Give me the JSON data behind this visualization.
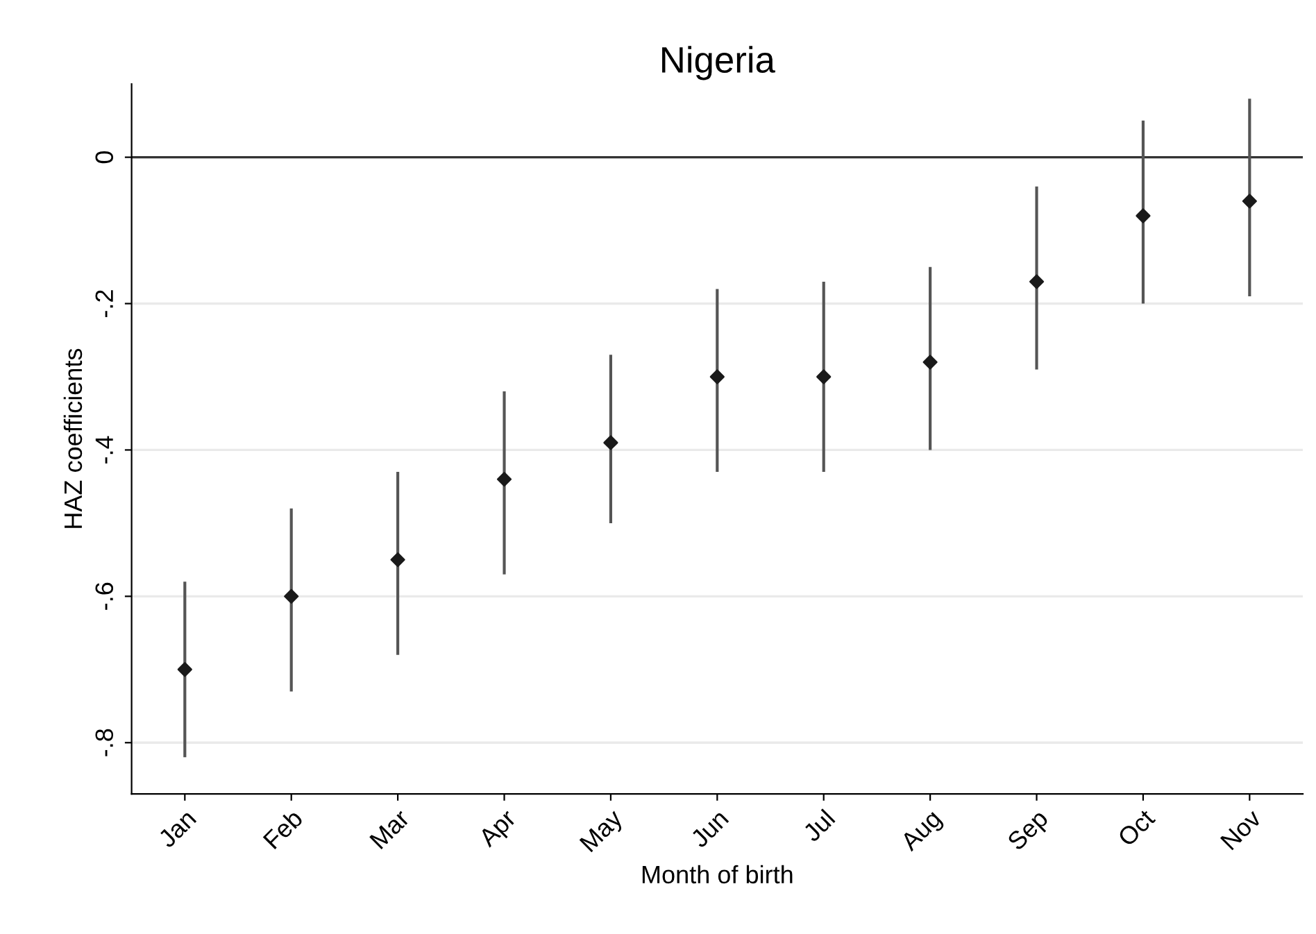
{
  "chart_data": {
    "type": "scatter",
    "title": "Nigeria",
    "xlabel": "Month of birth",
    "ylabel": "HAZ coefficients",
    "categories": [
      "Jan",
      "Feb",
      "Mar",
      "Apr",
      "May",
      "Jun",
      "Jul",
      "Aug",
      "Sep",
      "Oct",
      "Nov"
    ],
    "values": [
      -0.7,
      -0.6,
      -0.55,
      -0.44,
      -0.39,
      -0.3,
      -0.3,
      -0.28,
      -0.17,
      -0.08,
      -0.06
    ],
    "errors": [
      [
        -0.82,
        -0.58
      ],
      [
        -0.73,
        -0.48
      ],
      [
        -0.68,
        -0.43
      ],
      [
        -0.57,
        -0.32
      ],
      [
        -0.5,
        -0.27
      ],
      [
        -0.43,
        -0.18
      ],
      [
        -0.43,
        -0.17
      ],
      [
        -0.4,
        -0.15
      ],
      [
        -0.29,
        -0.04
      ],
      [
        -0.2,
        0.05
      ],
      [
        -0.19,
        0.08
      ]
    ],
    "color": "#1a1a1a",
    "marker": "diamond",
    "grid": "y",
    "ylim": [
      -0.87,
      0.1
    ],
    "yticks": [
      {
        "value": -0.8,
        "label": "-.8"
      },
      {
        "value": -0.6,
        "label": "-.6"
      },
      {
        "value": -0.4,
        "label": "-.4"
      },
      {
        "value": -0.2,
        "label": "-.2"
      },
      {
        "value": 0,
        "label": "0"
      }
    ],
    "ref_lines": [
      {
        "axis": "y",
        "value": 0,
        "color": "#333333"
      }
    ]
  }
}
